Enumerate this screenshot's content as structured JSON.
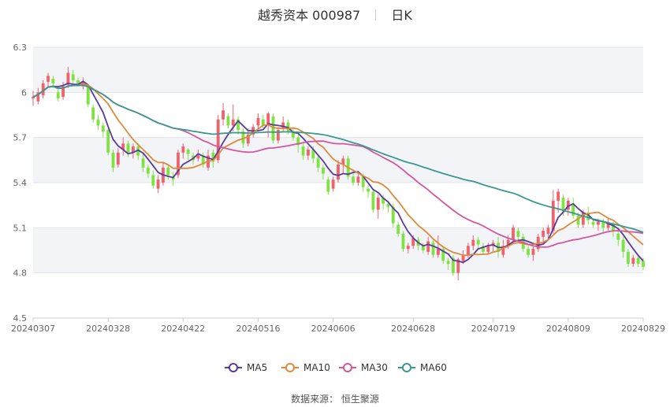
{
  "header": {
    "name_code": "越秀资本 000987",
    "period": "日K"
  },
  "source": {
    "label": "数据来源：",
    "value": "恒生聚源"
  },
  "colors": {
    "up": "#f0626b",
    "down": "#7fe33f",
    "ma5": "#5b3a9e",
    "ma10": "#dd8a3a",
    "ma30": "#d4579c",
    "ma60": "#3a9890",
    "band": "#f3f4f8"
  },
  "chart_data": {
    "type": "candlestick",
    "ylim": [
      4.5,
      6.3
    ],
    "yticks": [
      "6.3",
      "6",
      "5.7",
      "5.4",
      "5.1",
      "4.8",
      "4.5"
    ],
    "xticks": [
      "20240307",
      "20240328",
      "20240422",
      "20240516",
      "20240606",
      "20240628",
      "20240719",
      "20240809",
      "20240829"
    ],
    "n_days": 123,
    "xtick_index": [
      0,
      15,
      30,
      45,
      60,
      76,
      92,
      107,
      122
    ],
    "legend": [
      "MA5",
      "MA10",
      "MA30",
      "MA60"
    ],
    "ohlc": [
      [
        5.96,
        5.97,
        5.91,
        6.01
      ],
      [
        5.94,
        6.0,
        5.92,
        6.03
      ],
      [
        5.98,
        6.06,
        5.96,
        6.08
      ],
      [
        6.07,
        6.11,
        6.04,
        6.13
      ],
      [
        6.09,
        6.06,
        6.03,
        6.11
      ],
      [
        6.0,
        5.96,
        5.94,
        6.02
      ],
      [
        5.97,
        6.04,
        5.95,
        6.07
      ],
      [
        6.05,
        6.13,
        6.03,
        6.17
      ],
      [
        6.12,
        6.08,
        6.06,
        6.15
      ],
      [
        6.08,
        6.05,
        6.04,
        6.1
      ],
      [
        6.04,
        6.07,
        6.02,
        6.1
      ],
      [
        6.04,
        5.92,
        5.9,
        6.05
      ],
      [
        5.9,
        5.82,
        5.8,
        5.92
      ],
      [
        5.82,
        5.78,
        5.75,
        5.85
      ],
      [
        5.78,
        5.74,
        5.7,
        5.8
      ],
      [
        5.75,
        5.6,
        5.58,
        5.76
      ],
      [
        5.6,
        5.5,
        5.47,
        5.62
      ],
      [
        5.52,
        5.6,
        5.5,
        5.63
      ],
      [
        5.62,
        5.66,
        5.58,
        5.7
      ],
      [
        5.66,
        5.6,
        5.57,
        5.68
      ],
      [
        5.6,
        5.64,
        5.56,
        5.66
      ],
      [
        5.64,
        5.58,
        5.55,
        5.66
      ],
      [
        5.56,
        5.5,
        5.47,
        5.6
      ],
      [
        5.5,
        5.46,
        5.43,
        5.52
      ],
      [
        5.45,
        5.38,
        5.36,
        5.48
      ],
      [
        5.36,
        5.42,
        5.33,
        5.45
      ],
      [
        5.4,
        5.5,
        5.38,
        5.54
      ],
      [
        5.5,
        5.45,
        5.42,
        5.52
      ],
      [
        5.44,
        5.42,
        5.38,
        5.47
      ],
      [
        5.45,
        5.6,
        5.43,
        5.62
      ],
      [
        5.6,
        5.64,
        5.56,
        5.66
      ],
      [
        5.62,
        5.59,
        5.55,
        5.63
      ],
      [
        5.58,
        5.55,
        5.52,
        5.6
      ],
      [
        5.56,
        5.58,
        5.54,
        5.62
      ],
      [
        5.58,
        5.52,
        5.5,
        5.6
      ],
      [
        5.5,
        5.58,
        5.48,
        5.62
      ],
      [
        5.6,
        5.54,
        5.5,
        5.62
      ],
      [
        5.55,
        5.82,
        5.53,
        5.85
      ],
      [
        5.82,
        5.88,
        5.78,
        5.93
      ],
      [
        5.84,
        5.78,
        5.76,
        5.86
      ],
      [
        5.78,
        5.82,
        5.74,
        5.92
      ],
      [
        5.82,
        5.75,
        5.72,
        5.84
      ],
      [
        5.74,
        5.66,
        5.63,
        5.76
      ],
      [
        5.66,
        5.72,
        5.64,
        5.76
      ],
      [
        5.72,
        5.77,
        5.7,
        5.79
      ],
      [
        5.78,
        5.83,
        5.76,
        5.86
      ],
      [
        5.82,
        5.78,
        5.76,
        5.85
      ],
      [
        5.78,
        5.86,
        5.7,
        5.87
      ],
      [
        5.84,
        5.68,
        5.66,
        5.86
      ],
      [
        5.68,
        5.75,
        5.66,
        5.77
      ],
      [
        5.76,
        5.8,
        5.74,
        5.84
      ],
      [
        5.8,
        5.74,
        5.72,
        5.82
      ],
      [
        5.74,
        5.7,
        5.68,
        5.76
      ],
      [
        5.7,
        5.65,
        5.6,
        5.72
      ],
      [
        5.64,
        5.58,
        5.55,
        5.66
      ],
      [
        5.58,
        5.62,
        5.55,
        5.64
      ],
      [
        5.62,
        5.56,
        5.53,
        5.64
      ],
      [
        5.56,
        5.5,
        5.47,
        5.58
      ],
      [
        5.5,
        5.46,
        5.42,
        5.52
      ],
      [
        5.42,
        5.34,
        5.32,
        5.44
      ],
      [
        5.36,
        5.42,
        5.34,
        5.44
      ],
      [
        5.42,
        5.52,
        5.4,
        5.55
      ],
      [
        5.52,
        5.56,
        5.46,
        5.58
      ],
      [
        5.56,
        5.44,
        5.42,
        5.58
      ],
      [
        5.44,
        5.4,
        5.38,
        5.47
      ],
      [
        5.4,
        5.44,
        5.38,
        5.46
      ],
      [
        5.44,
        5.37,
        5.34,
        5.46
      ],
      [
        5.36,
        5.34,
        5.3,
        5.38
      ],
      [
        5.34,
        5.22,
        5.2,
        5.36
      ],
      [
        5.22,
        5.3,
        5.16,
        5.32
      ],
      [
        5.3,
        5.26,
        5.22,
        5.32
      ],
      [
        5.26,
        5.24,
        5.2,
        5.28
      ],
      [
        5.24,
        5.13,
        5.1,
        5.26
      ],
      [
        5.12,
        5.06,
        5.04,
        5.14
      ],
      [
        5.06,
        4.96,
        4.94,
        5.08
      ],
      [
        4.96,
        4.98,
        4.93,
        5.0
      ],
      [
        4.98,
        5.03,
        4.96,
        5.05
      ],
      [
        5.02,
        4.98,
        4.95,
        5.04
      ],
      [
        4.98,
        4.95,
        4.93,
        5.0
      ],
      [
        4.94,
        5.01,
        4.92,
        5.04
      ],
      [
        5.0,
        4.92,
        4.9,
        5.02
      ],
      [
        4.92,
        4.96,
        4.9,
        5.05
      ],
      [
        4.96,
        4.88,
        4.86,
        4.98
      ],
      [
        4.88,
        4.86,
        4.82,
        4.9
      ],
      [
        4.9,
        4.8,
        4.78,
        4.92
      ],
      [
        4.8,
        4.89,
        4.75,
        4.9
      ],
      [
        4.88,
        4.92,
        4.86,
        4.95
      ],
      [
        4.92,
        4.98,
        4.9,
        5.0
      ],
      [
        4.98,
        5.02,
        4.95,
        5.05
      ],
      [
        5.02,
        4.99,
        4.96,
        5.04
      ],
      [
        4.98,
        4.94,
        4.92,
        5.0
      ],
      [
        4.94,
        4.98,
        4.92,
        5.0
      ],
      [
        4.98,
        5.0,
        4.94,
        5.02
      ],
      [
        5.0,
        4.94,
        4.9,
        5.04
      ],
      [
        4.92,
        4.98,
        4.9,
        5.02
      ],
      [
        4.98,
        5.02,
        4.96,
        5.05
      ],
      [
        5.02,
        5.1,
        5.0,
        5.12
      ],
      [
        5.08,
        5.04,
        5.02,
        5.1
      ],
      [
        5.04,
        4.96,
        4.94,
        5.06
      ],
      [
        4.96,
        4.92,
        4.9,
        4.98
      ],
      [
        4.92,
        4.96,
        4.88,
        4.98
      ],
      [
        4.96,
        5.04,
        4.94,
        5.06
      ],
      [
        5.04,
        5.08,
        5.0,
        5.1
      ],
      [
        5.06,
        5.1,
        5.02,
        5.12
      ],
      [
        5.08,
        5.28,
        5.06,
        5.35
      ],
      [
        5.28,
        5.34,
        5.2,
        5.36
      ],
      [
        5.3,
        5.22,
        5.18,
        5.32
      ],
      [
        5.22,
        5.28,
        5.18,
        5.3
      ],
      [
        5.26,
        5.18,
        5.16,
        5.3
      ],
      [
        5.18,
        5.12,
        5.1,
        5.2
      ],
      [
        5.12,
        5.2,
        5.1,
        5.22
      ],
      [
        5.2,
        5.15,
        5.12,
        5.24
      ],
      [
        5.14,
        5.12,
        5.1,
        5.16
      ],
      [
        5.12,
        5.14,
        5.08,
        5.16
      ],
      [
        5.14,
        5.1,
        5.06,
        5.16
      ],
      [
        5.1,
        5.13,
        5.08,
        5.16
      ],
      [
        5.12,
        5.08,
        5.04,
        5.14
      ],
      [
        5.06,
        5.02,
        4.98,
        5.08
      ],
      [
        5.02,
        4.94,
        4.9,
        5.04
      ],
      [
        4.94,
        4.86,
        4.84,
        4.96
      ],
      [
        4.86,
        4.9,
        4.84,
        4.92
      ],
      [
        4.9,
        4.86,
        4.84,
        4.92
      ],
      [
        4.88,
        4.84,
        4.82,
        4.9
      ]
    ]
  }
}
